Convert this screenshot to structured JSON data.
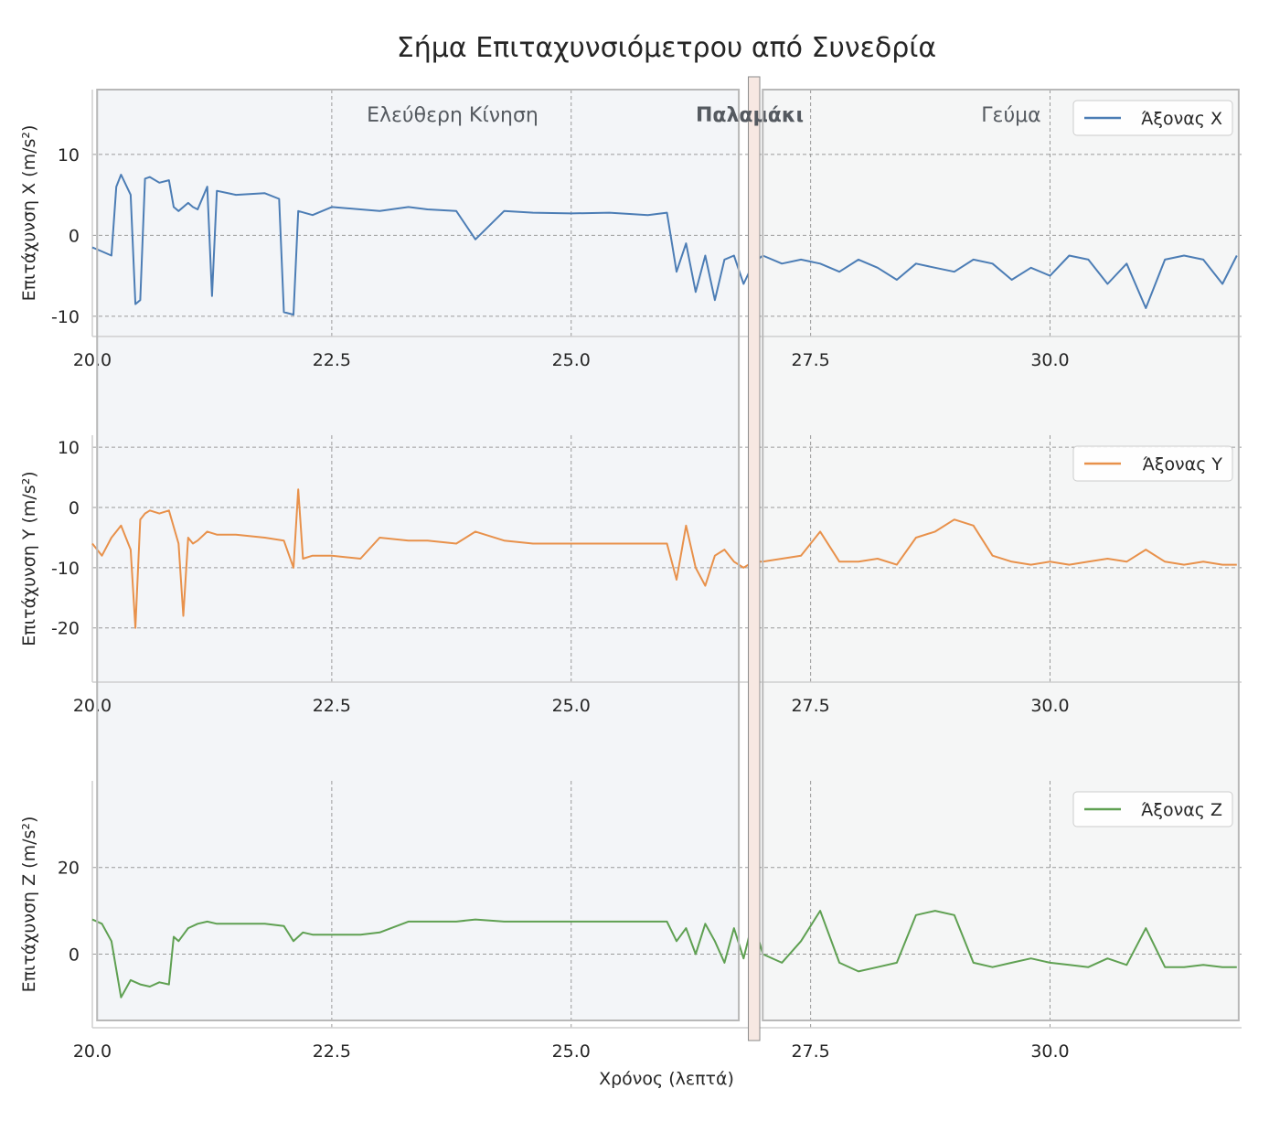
{
  "title": "Σήμα Επιταχυνσιόμετρου από Συνεδρία",
  "chart_data": {
    "type": "line",
    "title": "Σήμα Επιταχυνσιόμετρου από Συνεδρία",
    "xlabel": "Χρόνος (λεπτά)",
    "x_ticks": [
      "20.0",
      "22.5",
      "25.0",
      "27.5",
      "30.0"
    ],
    "xlim": [
      20.0,
      32.0
    ],
    "grid": true,
    "regions": [
      {
        "label": "Ελεύθερη Κίνηση",
        "x0": 20.05,
        "x1": 26.75,
        "color": "#c7d0de",
        "label_bold": false
      },
      {
        "label": "Παλαμάκι",
        "x0": 26.85,
        "x1": 26.95,
        "color": "#e8c4b6",
        "label_bold": true
      },
      {
        "label": "Γεύμα",
        "x0": 27.0,
        "x1": 31.97,
        "color": "#d0d6d6",
        "label_bold": false
      }
    ],
    "panels": [
      {
        "ylabel": "Επιτάχυνση X (m/s²)",
        "ylim": [
          -12.5,
          18
        ],
        "yticks": [
          10,
          0,
          -10
        ],
        "series": {
          "name": "Άξονας X",
          "color": "#4c7db5",
          "x": [
            20.0,
            20.1,
            20.2,
            20.25,
            20.3,
            20.4,
            20.45,
            20.5,
            20.55,
            20.6,
            20.7,
            20.8,
            20.85,
            20.9,
            21.0,
            21.05,
            21.1,
            21.2,
            21.25,
            21.3,
            21.5,
            21.8,
            21.95,
            22.0,
            22.1,
            22.15,
            22.3,
            22.5,
            22.8,
            23.0,
            23.3,
            23.5,
            23.8,
            24.0,
            24.3,
            24.6,
            25.0,
            25.4,
            25.8,
            26.0,
            26.1,
            26.2,
            26.3,
            26.4,
            26.5,
            26.6,
            26.7,
            26.8,
            26.9,
            27.0,
            27.2,
            27.4,
            27.6,
            27.8,
            28.0,
            28.2,
            28.4,
            28.6,
            28.8,
            29.0,
            29.2,
            29.4,
            29.6,
            29.8,
            30.0,
            30.2,
            30.4,
            30.6,
            30.8,
            31.0,
            31.2,
            31.4,
            31.6,
            31.8,
            31.95
          ],
          "y": [
            -1.5,
            -2.0,
            -2.5,
            6.0,
            7.5,
            5.0,
            -8.5,
            -8.0,
            7.0,
            7.2,
            6.5,
            6.8,
            3.5,
            3.0,
            4.0,
            3.5,
            3.2,
            6.0,
            -7.5,
            5.5,
            5.0,
            5.2,
            4.5,
            -9.5,
            -9.8,
            3.0,
            2.5,
            3.5,
            3.2,
            3.0,
            3.5,
            3.2,
            3.0,
            -0.5,
            3.0,
            2.8,
            2.7,
            2.8,
            2.5,
            2.8,
            -4.5,
            -1.0,
            -7.0,
            -2.5,
            -8.0,
            -3.0,
            -2.5,
            -6.0,
            -3.5,
            -2.5,
            -3.5,
            -3.0,
            -3.5,
            -4.5,
            -3.0,
            -4.0,
            -5.5,
            -3.5,
            -4.0,
            -4.5,
            -3.0,
            -3.5,
            -5.5,
            -4.0,
            -5.0,
            -2.5,
            -3.0,
            -6.0,
            -3.5,
            -9.0,
            -3.0,
            -2.5,
            -3.0,
            -6.0,
            -2.5
          ]
        }
      },
      {
        "ylabel": "Επιτάχυνση Y (m/s²)",
        "ylim": [
          -29,
          12
        ],
        "yticks": [
          10,
          0,
          -10,
          -20
        ],
        "series": {
          "name": "Άξονας Y",
          "color": "#e8914b",
          "x": [
            20.0,
            20.1,
            20.2,
            20.3,
            20.4,
            20.45,
            20.5,
            20.55,
            20.6,
            20.7,
            20.8,
            20.9,
            20.95,
            21.0,
            21.05,
            21.1,
            21.2,
            21.3,
            21.5,
            21.8,
            22.0,
            22.1,
            22.15,
            22.2,
            22.3,
            22.5,
            22.8,
            23.0,
            23.3,
            23.5,
            23.8,
            24.0,
            24.3,
            24.6,
            25.0,
            25.4,
            25.8,
            26.0,
            26.1,
            26.2,
            26.3,
            26.4,
            26.5,
            26.6,
            26.7,
            26.8,
            26.9,
            27.0,
            27.2,
            27.4,
            27.6,
            27.8,
            28.0,
            28.2,
            28.4,
            28.6,
            28.8,
            29.0,
            29.2,
            29.4,
            29.6,
            29.8,
            30.0,
            30.2,
            30.4,
            30.6,
            30.8,
            31.0,
            31.2,
            31.4,
            31.6,
            31.8,
            31.95
          ],
          "y": [
            -6.0,
            -8.0,
            -5.0,
            -3.0,
            -7.0,
            -20.0,
            -2.0,
            -1.0,
            -0.5,
            -1.0,
            -0.5,
            -6.0,
            -18.0,
            -5.0,
            -6.0,
            -5.5,
            -4.0,
            -4.5,
            -4.5,
            -5.0,
            -5.5,
            -10.0,
            3.0,
            -8.5,
            -8.0,
            -8.0,
            -8.5,
            -5.0,
            -5.5,
            -5.5,
            -6.0,
            -4.0,
            -5.5,
            -6.0,
            -6.0,
            -6.0,
            -6.0,
            -6.0,
            -12.0,
            -3.0,
            -10.0,
            -13.0,
            -8.0,
            -7.0,
            -9.0,
            -10.0,
            -9.0,
            -9.0,
            -8.5,
            -8.0,
            -4.0,
            -9.0,
            -9.0,
            -8.5,
            -9.5,
            -5.0,
            -4.0,
            -2.0,
            -3.0,
            -8.0,
            -9.0,
            -9.5,
            -9.0,
            -9.5,
            -9.0,
            -8.5,
            -9.0,
            -7.0,
            -9.0,
            -9.5,
            -9.0,
            -9.5,
            -9.5
          ]
        }
      },
      {
        "ylabel": "Επιτάχυνση Z (m/s²)",
        "ylim": [
          -17,
          40
        ],
        "yticks": [
          20,
          0
        ],
        "series": {
          "name": "Άξονας Z",
          "color": "#5fa052",
          "x": [
            20.0,
            20.1,
            20.2,
            20.3,
            20.4,
            20.5,
            20.6,
            20.7,
            20.8,
            20.85,
            20.9,
            21.0,
            21.1,
            21.2,
            21.3,
            21.5,
            21.8,
            22.0,
            22.1,
            22.2,
            22.3,
            22.5,
            22.8,
            23.0,
            23.3,
            23.5,
            23.8,
            24.0,
            24.3,
            24.6,
            25.0,
            25.4,
            25.8,
            26.0,
            26.1,
            26.2,
            26.3,
            26.4,
            26.5,
            26.6,
            26.7,
            26.8,
            26.9,
            27.0,
            27.2,
            27.4,
            27.6,
            27.8,
            28.0,
            28.2,
            28.4,
            28.6,
            28.8,
            29.0,
            29.2,
            29.4,
            29.6,
            29.8,
            30.0,
            30.2,
            30.4,
            30.6,
            30.8,
            31.0,
            31.2,
            31.4,
            31.6,
            31.8,
            31.95
          ],
          "y": [
            8.0,
            7.0,
            3.0,
            -10.0,
            -6.0,
            -7.0,
            -7.5,
            -6.5,
            -7.0,
            4.0,
            3.0,
            6.0,
            7.0,
            7.5,
            7.0,
            7.0,
            7.0,
            6.5,
            3.0,
            5.0,
            4.5,
            4.5,
            4.5,
            5.0,
            7.5,
            7.5,
            7.5,
            8.0,
            7.5,
            7.5,
            7.5,
            7.5,
            7.5,
            7.5,
            3.0,
            6.0,
            0.0,
            7.0,
            3.0,
            -2.0,
            6.0,
            -1.0,
            8.0,
            0.0,
            -2.0,
            3.0,
            10.0,
            -2.0,
            -4.0,
            -3.0,
            -2.0,
            9.0,
            10.0,
            9.0,
            -2.0,
            -3.0,
            -2.0,
            -1.0,
            -2.0,
            -2.5,
            -3.0,
            -1.0,
            -2.5,
            6.0,
            -3.0,
            -3.0,
            -2.5,
            -3.0,
            -3.0
          ]
        }
      }
    ]
  }
}
